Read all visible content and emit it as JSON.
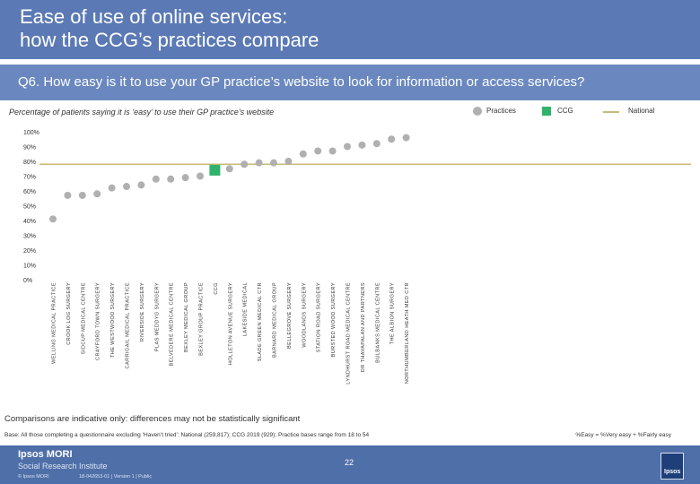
{
  "header": {
    "title_line1": "Ease of use of online services:",
    "title_line2": "how the CCG’s practices compare"
  },
  "question": "Q6. How easy is it to use your GP practice’s website to look for information or access services?",
  "subtitle": "Percentage of patients saying it is ‘easy’ to use their GP practice’s website",
  "legend": {
    "practices": "Practices",
    "ccg": "CCG",
    "national": "National"
  },
  "colors": {
    "header": "#5b79b4",
    "question_bar": "#6a88bf",
    "practice_marker": "#b0b0b0",
    "ccg_marker": "#2fb36a",
    "national_line": "#c9b977"
  },
  "chart_data": {
    "type": "scatter",
    "categories": [
      "WELLING MEDICAL PRACTICE",
      "CROOK LOG SURGERY",
      "SIDCUP MEDICAL CENTRE",
      "CRAYFORD TOWN SURGERY",
      "THE WESTWOOD SURGERY",
      "CARRIGAIL MEDICAL PRACTICE",
      "RIVERSIDE SURGERY",
      "PLAS MEDDYG SURGERY",
      "BELVEDERE MEDICAL CENTRE",
      "BEXLEY MEDICAL GROUP",
      "BEXLEY GROUP PRACTICE",
      "CCG",
      "HOLLETON AVENUE SURGERY",
      "LAKESIDE MEDICAL",
      "SLADE GREEN MEDICAL CTR",
      "BARNARD MEDICAL GROUP",
      "BELLEGROVE SURGERY",
      "WOODLANDS SURGERY",
      "STATION ROAD SURGERY",
      "BURSTED WOOD SURGERY",
      "LYNDHURST ROAD MEDICAL CENTRE",
      "DR THAVAPALAN AND PARTNERS",
      "BULBANKS MEDICAL CENTRE",
      "THE ALBION SURGERY",
      "NORTHUMBERLAND HEATH MED CTR"
    ],
    "values": [
      41,
      57,
      57,
      58,
      62,
      63,
      64,
      68,
      68,
      69,
      70,
      74,
      75,
      78,
      79,
      79,
      80,
      85,
      87,
      87,
      90,
      91,
      92,
      95,
      96
    ],
    "ccg_index": 11,
    "national": 78,
    "y_ticks": [
      "0%",
      "10%",
      "20%",
      "30%",
      "40%",
      "50%",
      "60%",
      "70%",
      "80%",
      "90%",
      "100%"
    ],
    "ylim": [
      0,
      100
    ]
  },
  "note": "Comparisons are indicative only: differences may not be statistically significant",
  "base": "Base: All those completing a questionnaire excluding ‘Haven’t tried’: National (259,817); CCG 2019 (929); Practice bases range from 18 to 54",
  "easy_def": "%Easy = %Very easy + %Fairly easy",
  "footer": {
    "brand1": "Ipsos MORI",
    "brand2": "Social Research Institute",
    "copyright": "© Ipsos MORI",
    "ref": "18-042653-01 | Version 1 | Public",
    "page": "22",
    "logo_text": "Ipsos"
  }
}
